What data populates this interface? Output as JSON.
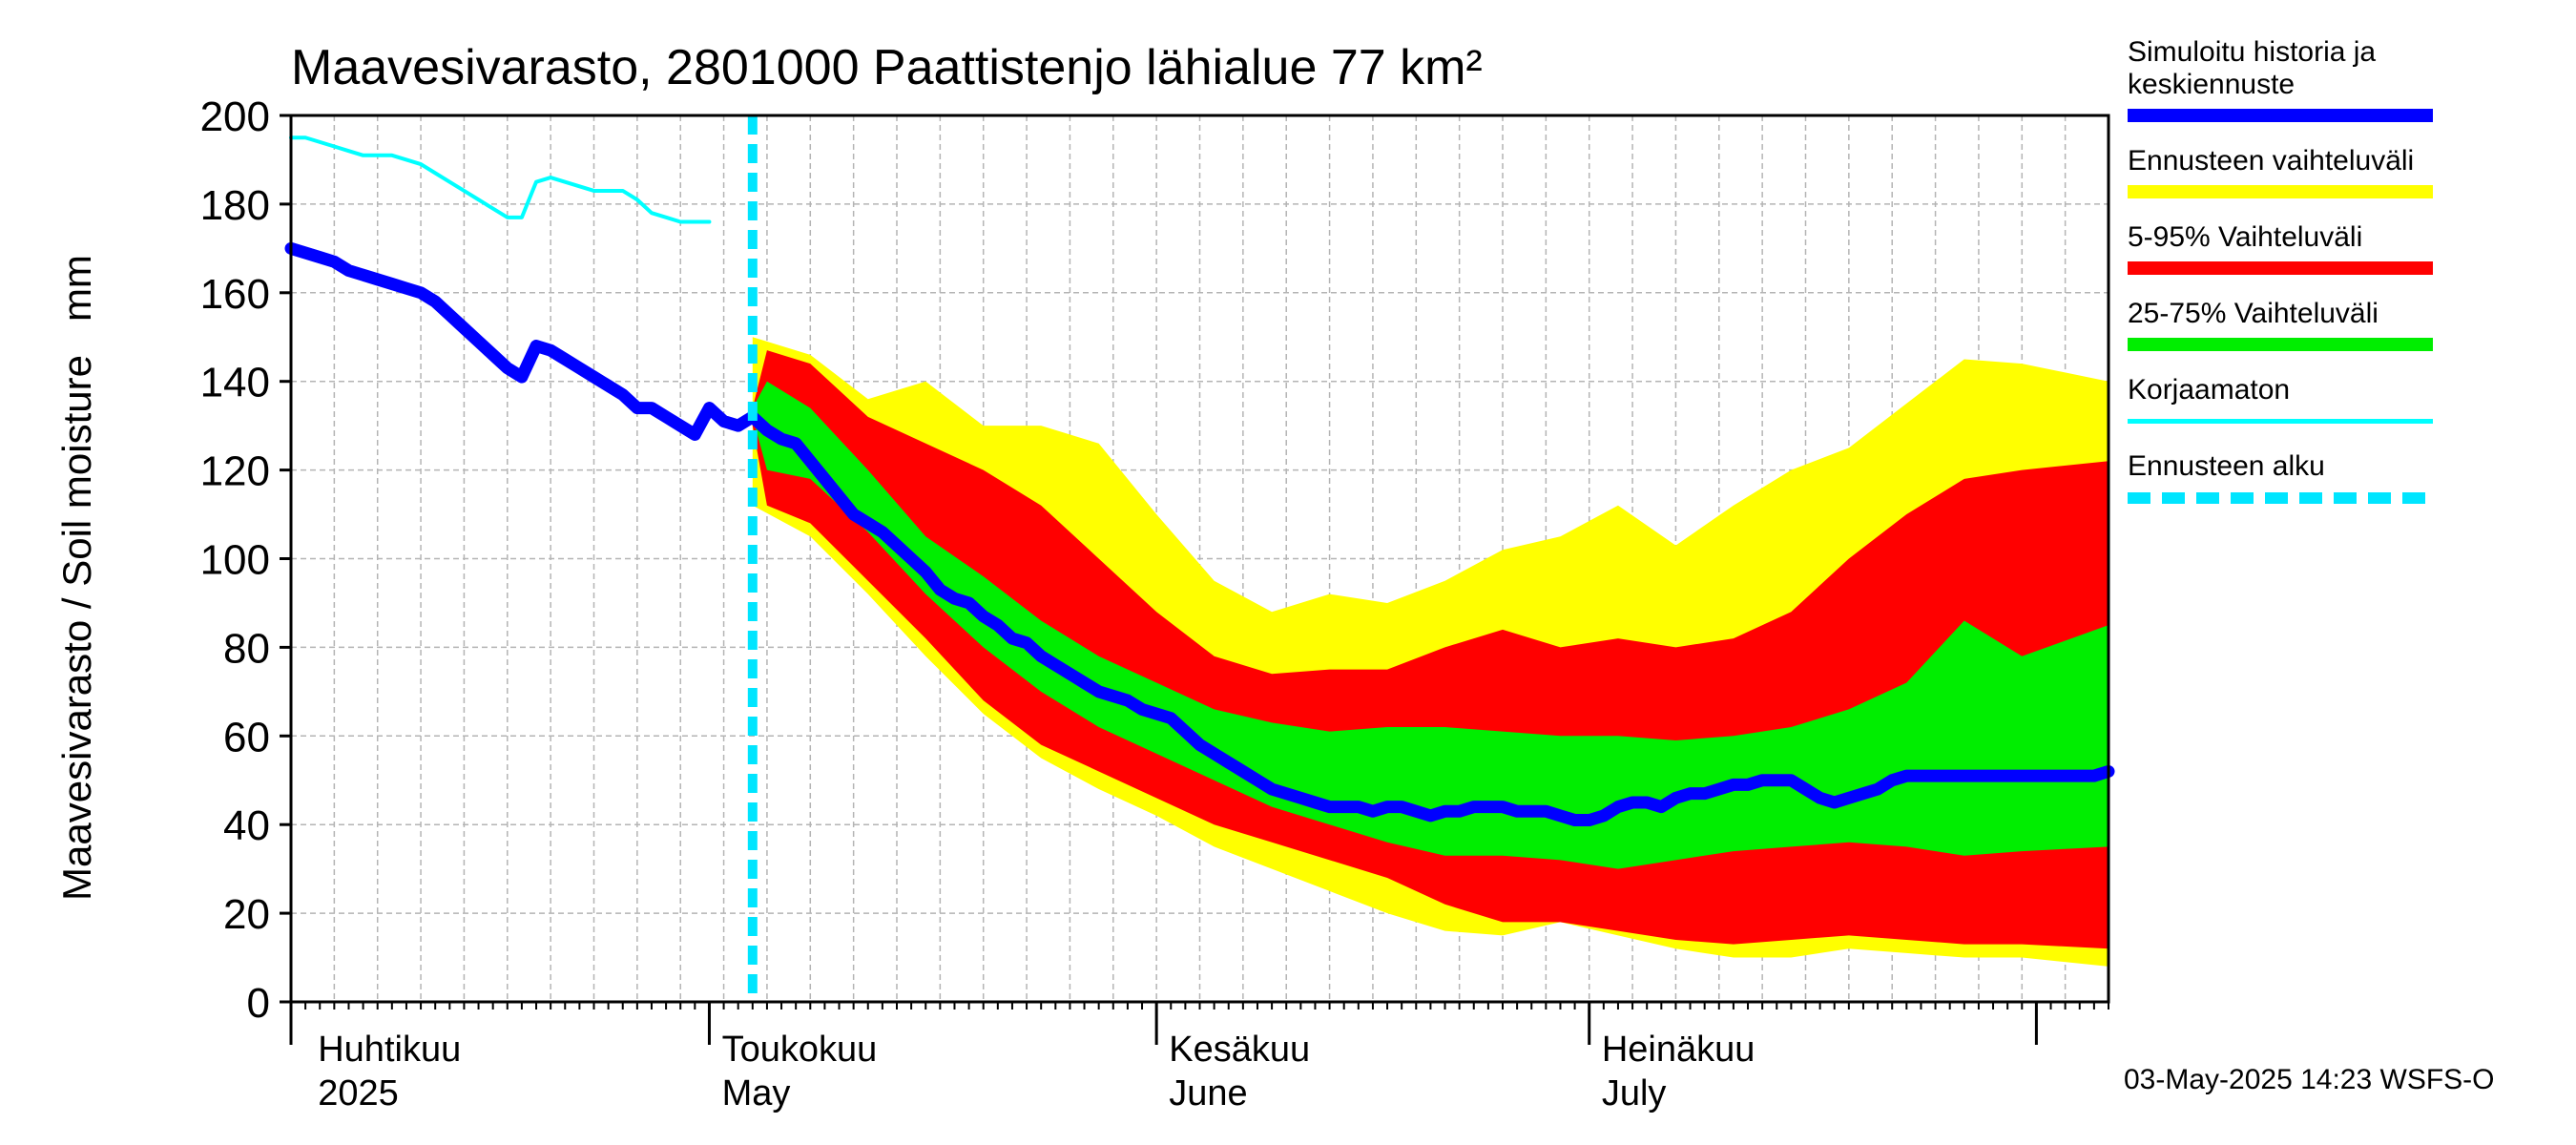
{
  "chart_data": {
    "type": "area",
    "title": "Maavesivarasto, 2801000 Paattistenjo lähialue 77 km²",
    "ylabel": "Maavesivarasto / Soil moisture   mm",
    "xlabel": "",
    "ylim": [
      0,
      200
    ],
    "xlim": [
      0,
      126
    ],
    "y_ticks": [
      "0",
      "20",
      "40",
      "60",
      "80",
      "100",
      "120",
      "140",
      "160",
      "180",
      "200"
    ],
    "x_month_labels": [
      {
        "day": 2,
        "fi": "Huhtikuu",
        "en": "2025"
      },
      {
        "day": 30,
        "fi": "Toukokuu",
        "en": "May"
      },
      {
        "day": 61,
        "fi": "Kesäkuu",
        "en": "June"
      },
      {
        "day": 91,
        "fi": "Heinäkuu",
        "en": "July"
      }
    ],
    "month_boundaries": [
      0,
      29,
      60,
      90,
      121
    ],
    "forecast_start_day": 32,
    "grid": true,
    "series": [
      {
        "name": "Ennusteen vaihteluväli",
        "color": "#ffff00",
        "upper": [
          [
            32,
            150
          ],
          [
            36,
            146
          ],
          [
            40,
            136
          ],
          [
            44,
            140
          ],
          [
            48,
            130
          ],
          [
            52,
            130
          ],
          [
            56,
            126
          ],
          [
            60,
            110
          ],
          [
            64,
            95
          ],
          [
            68,
            88
          ],
          [
            72,
            92
          ],
          [
            76,
            90
          ],
          [
            80,
            95
          ],
          [
            84,
            102
          ],
          [
            88,
            105
          ],
          [
            92,
            112
          ],
          [
            96,
            103
          ],
          [
            100,
            112
          ],
          [
            104,
            120
          ],
          [
            108,
            125
          ],
          [
            112,
            135
          ],
          [
            116,
            145
          ],
          [
            120,
            144
          ],
          [
            126,
            140
          ]
        ],
        "lower": [
          [
            32,
            112
          ],
          [
            36,
            105
          ],
          [
            40,
            92
          ],
          [
            44,
            78
          ],
          [
            48,
            65
          ],
          [
            52,
            55
          ],
          [
            56,
            48
          ],
          [
            60,
            42
          ],
          [
            64,
            35
          ],
          [
            68,
            30
          ],
          [
            72,
            25
          ],
          [
            76,
            20
          ],
          [
            80,
            16
          ],
          [
            84,
            15
          ],
          [
            88,
            18
          ],
          [
            92,
            15
          ],
          [
            96,
            12
          ],
          [
            100,
            10
          ],
          [
            104,
            10
          ],
          [
            108,
            12
          ],
          [
            112,
            11
          ],
          [
            116,
            10
          ],
          [
            120,
            10
          ],
          [
            126,
            8
          ]
        ]
      },
      {
        "name": "5-95% Vaihteluväli",
        "color": "#ff0000",
        "upper": [
          [
            32,
            134
          ],
          [
            33,
            147
          ],
          [
            36,
            144
          ],
          [
            40,
            132
          ],
          [
            44,
            126
          ],
          [
            48,
            120
          ],
          [
            52,
            112
          ],
          [
            56,
            100
          ],
          [
            60,
            88
          ],
          [
            64,
            78
          ],
          [
            68,
            74
          ],
          [
            72,
            75
          ],
          [
            76,
            75
          ],
          [
            80,
            80
          ],
          [
            84,
            84
          ],
          [
            88,
            80
          ],
          [
            92,
            82
          ],
          [
            96,
            80
          ],
          [
            100,
            82
          ],
          [
            104,
            88
          ],
          [
            108,
            100
          ],
          [
            112,
            110
          ],
          [
            116,
            118
          ],
          [
            120,
            120
          ],
          [
            126,
            122
          ]
        ],
        "lower": [
          [
            32,
            130
          ],
          [
            33,
            112
          ],
          [
            36,
            108
          ],
          [
            40,
            95
          ],
          [
            44,
            82
          ],
          [
            48,
            68
          ],
          [
            52,
            58
          ],
          [
            56,
            52
          ],
          [
            60,
            46
          ],
          [
            64,
            40
          ],
          [
            68,
            36
          ],
          [
            72,
            32
          ],
          [
            76,
            28
          ],
          [
            80,
            22
          ],
          [
            84,
            18
          ],
          [
            88,
            18
          ],
          [
            92,
            16
          ],
          [
            96,
            14
          ],
          [
            100,
            13
          ],
          [
            104,
            14
          ],
          [
            108,
            15
          ],
          [
            112,
            14
          ],
          [
            116,
            13
          ],
          [
            120,
            13
          ],
          [
            126,
            12
          ]
        ]
      },
      {
        "name": "25-75% Vaihteluväli",
        "color": "#00ee00",
        "upper": [
          [
            32,
            134
          ],
          [
            33,
            140
          ],
          [
            36,
            134
          ],
          [
            40,
            120
          ],
          [
            44,
            105
          ],
          [
            48,
            96
          ],
          [
            52,
            86
          ],
          [
            56,
            78
          ],
          [
            60,
            72
          ],
          [
            64,
            66
          ],
          [
            68,
            63
          ],
          [
            72,
            61
          ],
          [
            76,
            62
          ],
          [
            80,
            62
          ],
          [
            84,
            61
          ],
          [
            88,
            60
          ],
          [
            92,
            60
          ],
          [
            96,
            59
          ],
          [
            100,
            60
          ],
          [
            104,
            62
          ],
          [
            108,
            66
          ],
          [
            112,
            72
          ],
          [
            116,
            86
          ],
          [
            120,
            78
          ],
          [
            126,
            85
          ]
        ],
        "lower": [
          [
            32,
            132
          ],
          [
            33,
            120
          ],
          [
            36,
            118
          ],
          [
            40,
            106
          ],
          [
            44,
            92
          ],
          [
            48,
            80
          ],
          [
            52,
            70
          ],
          [
            56,
            62
          ],
          [
            60,
            56
          ],
          [
            64,
            50
          ],
          [
            68,
            44
          ],
          [
            72,
            40
          ],
          [
            76,
            36
          ],
          [
            80,
            33
          ],
          [
            84,
            33
          ],
          [
            88,
            32
          ],
          [
            92,
            30
          ],
          [
            96,
            32
          ],
          [
            100,
            34
          ],
          [
            104,
            35
          ],
          [
            108,
            36
          ],
          [
            112,
            35
          ],
          [
            116,
            33
          ],
          [
            120,
            34
          ],
          [
            126,
            35
          ]
        ]
      },
      {
        "name": "Simuloitu historia ja keskiennuste",
        "color": "#0000ff",
        "values": [
          [
            0,
            170
          ],
          [
            1,
            169
          ],
          [
            2,
            168
          ],
          [
            3,
            167
          ],
          [
            4,
            165
          ],
          [
            5,
            164
          ],
          [
            6,
            163
          ],
          [
            7,
            162
          ],
          [
            8,
            161
          ],
          [
            9,
            160
          ],
          [
            10,
            158
          ],
          [
            11,
            155
          ],
          [
            12,
            152
          ],
          [
            13,
            149
          ],
          [
            14,
            146
          ],
          [
            15,
            143
          ],
          [
            16,
            141
          ],
          [
            17,
            148
          ],
          [
            18,
            147
          ],
          [
            19,
            145
          ],
          [
            20,
            143
          ],
          [
            21,
            141
          ],
          [
            22,
            139
          ],
          [
            23,
            137
          ],
          [
            24,
            134
          ],
          [
            25,
            134
          ],
          [
            26,
            132
          ],
          [
            27,
            130
          ],
          [
            28,
            128
          ],
          [
            29,
            134
          ],
          [
            30,
            131
          ],
          [
            31,
            130
          ],
          [
            32,
            132
          ],
          [
            33,
            129
          ],
          [
            34,
            127
          ],
          [
            35,
            126
          ],
          [
            36,
            122
          ],
          [
            37,
            118
          ],
          [
            38,
            114
          ],
          [
            39,
            110
          ],
          [
            40,
            108
          ],
          [
            41,
            106
          ],
          [
            42,
            103
          ],
          [
            43,
            100
          ],
          [
            44,
            97
          ],
          [
            45,
            93
          ],
          [
            46,
            91
          ],
          [
            47,
            90
          ],
          [
            48,
            87
          ],
          [
            49,
            85
          ],
          [
            50,
            82
          ],
          [
            51,
            81
          ],
          [
            52,
            78
          ],
          [
            53,
            76
          ],
          [
            54,
            74
          ],
          [
            55,
            72
          ],
          [
            56,
            70
          ],
          [
            57,
            69
          ],
          [
            58,
            68
          ],
          [
            59,
            66
          ],
          [
            60,
            65
          ],
          [
            61,
            64
          ],
          [
            62,
            61
          ],
          [
            63,
            58
          ],
          [
            64,
            56
          ],
          [
            65,
            54
          ],
          [
            66,
            52
          ],
          [
            67,
            50
          ],
          [
            68,
            48
          ],
          [
            69,
            47
          ],
          [
            70,
            46
          ],
          [
            71,
            45
          ],
          [
            72,
            44
          ],
          [
            73,
            44
          ],
          [
            74,
            44
          ],
          [
            75,
            43
          ],
          [
            76,
            44
          ],
          [
            77,
            44
          ],
          [
            78,
            43
          ],
          [
            79,
            42
          ],
          [
            80,
            43
          ],
          [
            81,
            43
          ],
          [
            82,
            44
          ],
          [
            83,
            44
          ],
          [
            84,
            44
          ],
          [
            85,
            43
          ],
          [
            86,
            43
          ],
          [
            87,
            43
          ],
          [
            88,
            42
          ],
          [
            89,
            41
          ],
          [
            90,
            41
          ],
          [
            91,
            42
          ],
          [
            92,
            44
          ],
          [
            93,
            45
          ],
          [
            94,
            45
          ],
          [
            95,
            44
          ],
          [
            96,
            46
          ],
          [
            97,
            47
          ],
          [
            98,
            47
          ],
          [
            99,
            48
          ],
          [
            100,
            49
          ],
          [
            101,
            49
          ],
          [
            102,
            50
          ],
          [
            103,
            50
          ],
          [
            104,
            50
          ],
          [
            105,
            48
          ],
          [
            106,
            46
          ],
          [
            107,
            45
          ],
          [
            108,
            46
          ],
          [
            109,
            47
          ],
          [
            110,
            48
          ],
          [
            111,
            50
          ],
          [
            112,
            51
          ],
          [
            113,
            51
          ],
          [
            114,
            51
          ],
          [
            115,
            51
          ],
          [
            116,
            51
          ],
          [
            117,
            51
          ],
          [
            118,
            51
          ],
          [
            119,
            51
          ],
          [
            120,
            51
          ],
          [
            121,
            51
          ],
          [
            122,
            51
          ],
          [
            123,
            51
          ],
          [
            124,
            51
          ],
          [
            125,
            51
          ],
          [
            126,
            52
          ]
        ]
      },
      {
        "name": "Korjaamaton",
        "color": "#00ffff",
        "values": [
          [
            0,
            195
          ],
          [
            1,
            195
          ],
          [
            2,
            194
          ],
          [
            3,
            193
          ],
          [
            4,
            192
          ],
          [
            5,
            191
          ],
          [
            6,
            191
          ],
          [
            7,
            191
          ],
          [
            8,
            190
          ],
          [
            9,
            189
          ],
          [
            10,
            187
          ],
          [
            11,
            185
          ],
          [
            12,
            183
          ],
          [
            13,
            181
          ],
          [
            14,
            179
          ],
          [
            15,
            177
          ],
          [
            16,
            177
          ],
          [
            17,
            185
          ],
          [
            18,
            186
          ],
          [
            19,
            185
          ],
          [
            20,
            184
          ],
          [
            21,
            183
          ],
          [
            22,
            183
          ],
          [
            23,
            183
          ],
          [
            24,
            181
          ],
          [
            25,
            178
          ],
          [
            26,
            177
          ],
          [
            27,
            176
          ],
          [
            28,
            176
          ],
          [
            29,
            176
          ]
        ]
      }
    ]
  },
  "legend": {
    "items": [
      {
        "label": "Simuloitu historia ja\nkeskiennuste",
        "color": "#0000ff",
        "style": "solid"
      },
      {
        "label": "Ennusteen vaihteluväli",
        "color": "#ffff00",
        "style": "solid"
      },
      {
        "label": "5-95% Vaihteluväli",
        "color": "#ff0000",
        "style": "solid"
      },
      {
        "label": "25-75% Vaihteluväli",
        "color": "#00ee00",
        "style": "solid"
      },
      {
        "label": "Korjaamaton",
        "color": "#00ffff",
        "style": "thin"
      },
      {
        "label": "Ennusteen alku",
        "color": "#00e5ff",
        "style": "dashed"
      }
    ]
  },
  "footer": {
    "timestamp": "03-May-2025 14:23 WSFS-O"
  }
}
